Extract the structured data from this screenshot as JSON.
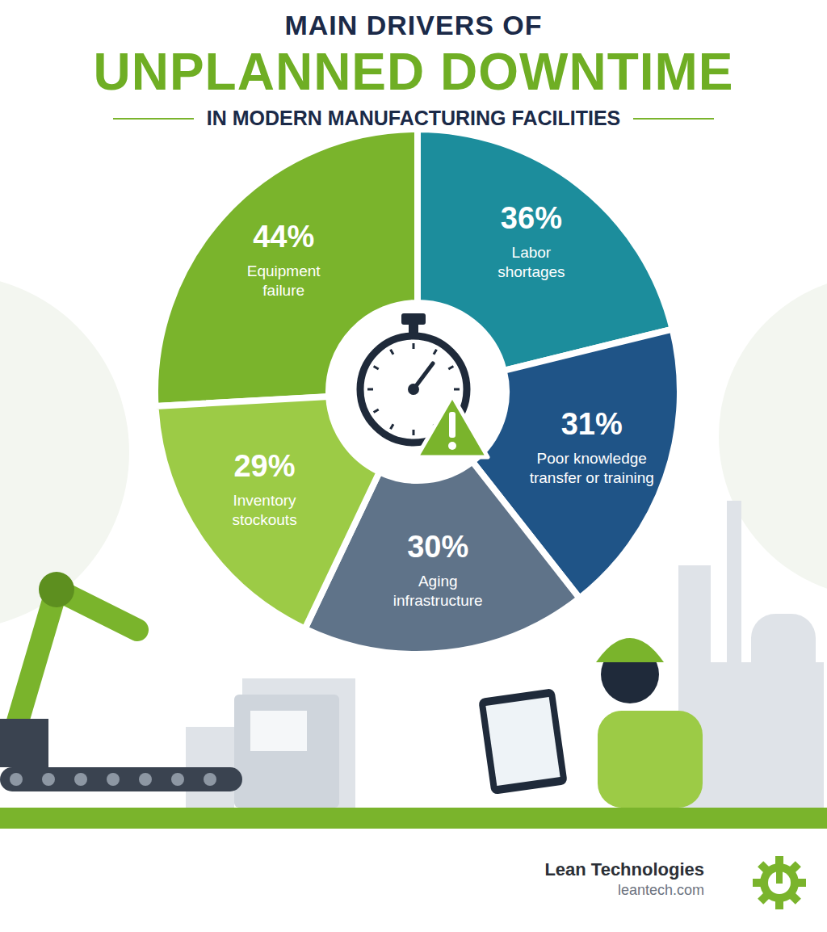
{
  "chart_data": {
    "type": "pie",
    "supertitle": "MAIN DRIVERS OF",
    "title": "UNPLANNED DOWNTIME",
    "subtitle": "IN MODERN MANUFACTURING FACILITIES",
    "categories": [
      "Equipment failure",
      "Labor shortages",
      "Poor knowledge transfer or training",
      "Aging infrastructure",
      "Inventory stockouts"
    ],
    "values": [
      44,
      36,
      31,
      30,
      29
    ],
    "value_labels": [
      "44%",
      "36%",
      "31%",
      "30%",
      "29%"
    ],
    "colors": [
      "#7ab42c",
      "#1c8d9c",
      "#1f5487",
      "#5f7389",
      "#9ccb46"
    ],
    "data_labels": true,
    "brand": "Lean Technologies",
    "website": "leantech.com"
  }
}
